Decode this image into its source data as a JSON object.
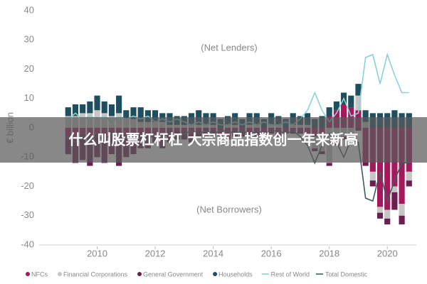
{
  "chart_data": {
    "type": "bar",
    "y_label": "€ billion",
    "annotations": [
      "(Net Lenders)",
      "(Net Borrowers)"
    ],
    "banner": "什么叫股票杠杆杠 大宗商品指数创一年来新高",
    "x": [
      2009,
      2009.25,
      2009.5,
      2009.75,
      2010,
      2010.25,
      2010.5,
      2010.75,
      2011,
      2011.25,
      2011.5,
      2011.75,
      2012,
      2012.25,
      2012.5,
      2012.75,
      2013,
      2013.25,
      2013.5,
      2013.75,
      2014,
      2014.25,
      2014.5,
      2014.75,
      2015,
      2015.25,
      2015.5,
      2015.75,
      2016,
      2016.25,
      2016.5,
      2016.75,
      2017,
      2017.25,
      2017.5,
      2017.75,
      2018,
      2018.25,
      2018.5,
      2018.75,
      2019,
      2019.25,
      2019.5,
      2019.75,
      2020,
      2020.25,
      2020.5,
      2020.75
    ],
    "xlim": [
      2008,
      2021
    ],
    "xticks": [
      2010,
      2012,
      2014,
      2016,
      2018,
      2020
    ],
    "ylim": [
      -40,
      40
    ],
    "yticks": [
      -40,
      -30,
      -20,
      -10,
      0,
      10,
      20,
      30,
      40
    ],
    "series": [
      {
        "name": "NFCs",
        "color": "#a3195b",
        "values": [
          -3,
          -4,
          -2,
          -3,
          -2,
          -3,
          -2,
          -1,
          -2,
          -3,
          -2,
          -2,
          -1,
          -2,
          -1,
          -1,
          -1,
          -2,
          -1,
          0,
          -1,
          -1,
          -2,
          -1,
          -1,
          -2,
          -1,
          -1,
          -1,
          -2,
          -1,
          -1,
          -1,
          -2,
          -3,
          -2,
          4,
          6,
          8,
          7,
          6,
          -12,
          -15,
          -27,
          -28,
          -20,
          -26,
          -15
        ]
      },
      {
        "name": "Financial Corporations",
        "color": "#c6c6c6",
        "values": [
          4,
          4,
          5,
          5,
          6,
          5,
          4,
          5,
          3,
          3,
          2,
          2,
          2,
          2,
          1,
          1,
          1,
          1,
          1,
          1,
          1,
          0,
          1,
          1,
          0,
          1,
          1,
          0,
          1,
          1,
          0,
          1,
          1,
          1,
          -4,
          -6,
          -12,
          -5,
          -3,
          -2,
          5,
          2,
          -3,
          -2,
          -3,
          -2,
          -4,
          -3
        ]
      },
      {
        "name": "General Government",
        "color": "#6b1f4f",
        "values": [
          -6,
          -8,
          -9,
          -10,
          -8,
          -9,
          -7,
          -12,
          -8,
          -6,
          -5,
          -5,
          -4,
          -5,
          -4,
          -3,
          -3,
          -3,
          -2,
          -3,
          -2,
          -2,
          -2,
          -2,
          -2,
          -1,
          -2,
          -1,
          -1,
          -1,
          -1,
          -1,
          -1,
          0,
          -1,
          -1,
          -1,
          -1,
          -1,
          -1,
          -1,
          -1,
          -2,
          -2,
          -2,
          -6,
          -3,
          -2
        ]
      },
      {
        "name": "Households",
        "color": "#1f4e5f",
        "values": [
          3,
          4,
          3,
          4,
          5,
          4,
          4,
          6,
          3,
          4,
          5,
          4,
          4,
          3,
          4,
          3,
          3,
          4,
          5,
          4,
          4,
          3,
          3,
          4,
          3,
          4,
          4,
          3,
          4,
          3,
          3,
          4,
          3,
          4,
          3,
          4,
          3,
          3,
          4,
          4,
          4,
          4,
          5,
          5,
          5,
          6,
          5,
          5
        ]
      },
      {
        "name": "Rest of World",
        "type": "line",
        "color": "#8ad3d3",
        "values": [
          3,
          5,
          3,
          4,
          3,
          4,
          2,
          4,
          3,
          4,
          3,
          4,
          2,
          3,
          2,
          3,
          2,
          1,
          2,
          1,
          2,
          1,
          1,
          2,
          1,
          2,
          1,
          2,
          1,
          1,
          2,
          1,
          3,
          6,
          12,
          6,
          2,
          5,
          10,
          4,
          5,
          24,
          25,
          15,
          25,
          18,
          12,
          12
        ]
      },
      {
        "name": "Total Domestic",
        "type": "line",
        "color": "#3d5c5c",
        "values": [
          -3,
          -5,
          -3,
          -4,
          -3,
          -4,
          -2,
          -4,
          -3,
          -4,
          -3,
          -4,
          -2,
          -3,
          -2,
          -3,
          -2,
          -1,
          -2,
          -1,
          -2,
          -1,
          -1,
          -2,
          -1,
          -2,
          -1,
          -2,
          -1,
          -1,
          -2,
          -1,
          -3,
          -6,
          -12,
          -6,
          -2,
          -5,
          -10,
          -4,
          -5,
          -24,
          -25,
          -15,
          -25,
          -18,
          -12,
          -12
        ]
      }
    ]
  }
}
